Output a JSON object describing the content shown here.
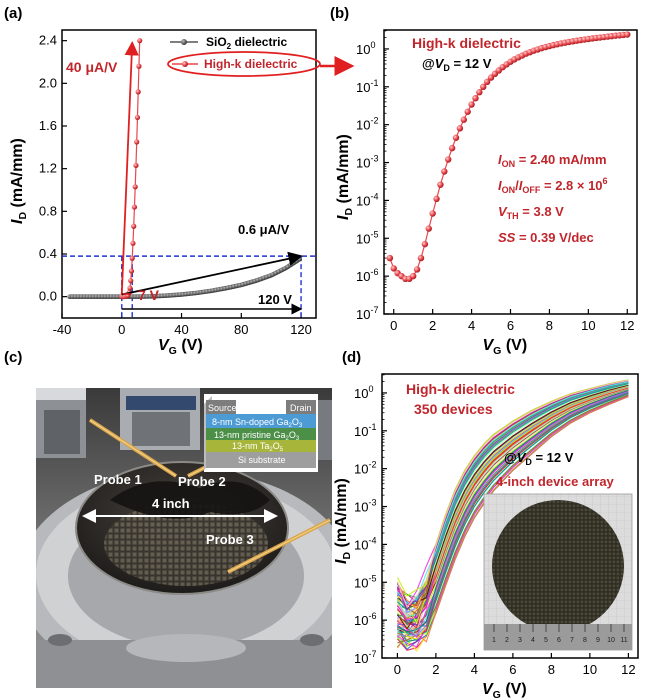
{
  "panels": {
    "a": "(a)",
    "b": "(b)",
    "c": "(c)",
    "d": "(d)"
  },
  "colors": {
    "highk": "#e8474c",
    "highk_text": "#c0262c",
    "sio2": "#555555",
    "dash": "#2233cc",
    "axis": "#000000"
  },
  "chart_data": [
    {
      "panel": "a",
      "type": "line",
      "title": "",
      "xlabel": "V",
      "xlabel_sub": "G",
      "xlabel_unit": "(V)",
      "ylabel": "I",
      "ylabel_sub": "D",
      "ylabel_unit": "(mA/mm)",
      "xlim": [
        -40,
        130
      ],
      "ylim": [
        -0.2,
        2.5
      ],
      "x_ticks": [
        -40,
        0,
        40,
        80,
        120
      ],
      "x_tick_labels": [
        "-40",
        "0",
        "40",
        "80",
        "120"
      ],
      "y_ticks": [
        0.0,
        0.4,
        0.8,
        1.2,
        1.6,
        2.0,
        2.4
      ],
      "y_tick_labels": [
        "0.0",
        "0.4",
        "0.8",
        "1.2",
        "1.6",
        "2.0",
        "2.4"
      ],
      "legend": [
        {
          "name_main": "SiO",
          "name_sub": "2",
          "name_rest": " dielectric",
          "color": "#555555"
        },
        {
          "name_main": "High-k dielectric",
          "name_sub": "",
          "name_rest": "",
          "color": "#e8474c"
        }
      ],
      "series": [
        {
          "name": "SiO2 dielectric",
          "x": [
            -35,
            -20,
            0,
            10,
            20,
            30,
            40,
            50,
            60,
            70,
            80,
            90,
            100,
            110,
            120
          ],
          "y": [
            0.0,
            0.0,
            0.0,
            0.0,
            0.003,
            0.01,
            0.02,
            0.035,
            0.055,
            0.08,
            0.11,
            0.15,
            0.2,
            0.27,
            0.36
          ]
        },
        {
          "name": "High-k dielectric",
          "x": [
            0,
            1,
            2,
            3,
            4,
            5,
            5.5,
            6,
            6.5,
            7,
            7.5,
            8,
            8.5,
            9,
            9.5,
            10,
            10.5,
            11,
            11.5,
            12
          ],
          "y": [
            0.0,
            0.0,
            0.001,
            0.003,
            0.01,
            0.04,
            0.08,
            0.15,
            0.24,
            0.36,
            0.5,
            0.66,
            0.84,
            1.03,
            1.23,
            1.45,
            1.68,
            1.92,
            2.16,
            2.4
          ]
        }
      ],
      "annotations": {
        "slope_highk": "40 μA/V",
        "slope_sio2": "0.6 μA/V",
        "vth_highk": "7 V",
        "vth_sio2": "120 V",
        "legend_highlight": "High-k dielectric"
      },
      "ref_level": 0.38
    },
    {
      "panel": "b",
      "type": "scatter",
      "title": "High-k dielectric",
      "condition_prefix": "@",
      "condition_var": "V",
      "condition_sub": "D",
      "condition_val": " = 12 V",
      "xlabel": "V",
      "xlabel_sub": "G",
      "xlabel_unit": "(V)",
      "ylabel": "I",
      "ylabel_sub": "D",
      "ylabel_unit": "(mA/mm)",
      "xlim": [
        -0.5,
        12.5
      ],
      "ylog": [
        -7,
        0.5
      ],
      "x_ticks": [
        0,
        2,
        4,
        6,
        8,
        10,
        12
      ],
      "x_tick_labels": [
        "0",
        "2",
        "4",
        "6",
        "8",
        "10",
        "12"
      ],
      "y_decades": [
        -7,
        -6,
        -5,
        -4,
        -3,
        -2,
        -1,
        0
      ],
      "y_tick_exps": [
        "-7",
        "-6",
        "-5",
        "-4",
        "-3",
        "-2",
        "-1",
        "0"
      ],
      "series": [
        {
          "name": "High-k dielectric",
          "x": [
            -0.2,
            0,
            0.2,
            0.4,
            0.6,
            0.8,
            1.0,
            1.2,
            1.4,
            1.6,
            1.8,
            2.0,
            2.2,
            2.4,
            2.6,
            2.8,
            3.0,
            3.2,
            3.4,
            3.6,
            3.8,
            4.0,
            4.2,
            4.4,
            4.6,
            4.8,
            5.0,
            5.2,
            5.4,
            5.6,
            5.8,
            6.0,
            6.2,
            6.4,
            6.6,
            6.8,
            7.0,
            7.2,
            7.4,
            7.6,
            7.8,
            8.0,
            8.2,
            8.4,
            8.6,
            8.8,
            9.0,
            9.2,
            9.4,
            9.6,
            9.8,
            10.0,
            10.2,
            10.4,
            10.6,
            10.8,
            11.0,
            11.2,
            11.4,
            11.6,
            11.8,
            12.0
          ],
          "y": [
            3e-06,
            1.6e-06,
            1.2e-06,
            1e-06,
            8.5e-07,
            8.5e-07,
            1e-06,
            1.5e-06,
            3e-06,
            7e-06,
            1.8e-05,
            4.5e-05,
            0.00011,
            0.00026,
            0.00058,
            0.0012,
            0.0024,
            0.0045,
            0.008,
            0.0135,
            0.022,
            0.034,
            0.05,
            0.072,
            0.1,
            0.135,
            0.175,
            0.22,
            0.27,
            0.33,
            0.39,
            0.46,
            0.53,
            0.6,
            0.67,
            0.75,
            0.82,
            0.9,
            0.97,
            1.05,
            1.12,
            1.19,
            1.26,
            1.33,
            1.4,
            1.46,
            1.53,
            1.59,
            1.65,
            1.71,
            1.77,
            1.83,
            1.89,
            1.95,
            2.0,
            2.06,
            2.12,
            2.18,
            2.24,
            2.29,
            2.34,
            2.4
          ]
        }
      ],
      "metrics": {
        "ion_var": "I",
        "ion_sub": "ON",
        "ion_val": " = 2.40 mA/mm",
        "ratio_var1": "I",
        "ratio_sub1": "ON",
        "ratio_slash": "/",
        "ratio_var2": "I",
        "ratio_sub2": "OFF",
        "ratio_val": " = 2.8 × 10",
        "ratio_exp": "6",
        "vth_var": "V",
        "vth_sub": "TH",
        "vth_val": " = 3.8 V",
        "ss_var": "SS",
        "ss_val": " = 0.39 V/dec"
      }
    },
    {
      "panel": "d",
      "type": "line",
      "title": "High-k dielectric",
      "subtitle": "350 devices",
      "condition_prefix": "@",
      "condition_var": "V",
      "condition_sub": "D",
      "condition_val": " = 12 V",
      "inset_caption": "4-inch device array",
      "xlabel": "V",
      "xlabel_sub": "G",
      "xlabel_unit": "(V)",
      "ylabel": "I",
      "ylabel_sub": "D",
      "ylabel_unit": "(mA/mm)",
      "xlim": [
        -0.8,
        12.5
      ],
      "ylog": [
        -7,
        0.5
      ],
      "x_ticks": [
        0,
        2,
        4,
        6,
        8,
        10,
        12
      ],
      "x_tick_labels": [
        "0",
        "2",
        "4",
        "6",
        "8",
        "10",
        "12"
      ],
      "y_decades": [
        -7,
        -6,
        -5,
        -4,
        -3,
        -2,
        -1,
        0
      ],
      "y_tick_exps": [
        "-7",
        "-6",
        "-5",
        "-4",
        "-3",
        "-2",
        "-1",
        "0"
      ],
      "device_count": 350,
      "envelope": {
        "x": [
          0,
          0.5,
          1,
          1.5,
          2,
          2.5,
          3,
          3.5,
          4,
          4.5,
          5,
          6,
          7,
          8,
          9,
          10,
          11,
          12
        ],
        "y_min": [
          3e-07,
          2.5e-07,
          2.5e-07,
          4e-07,
          1.5e-06,
          8e-06,
          4e-05,
          0.00016,
          0.0005,
          0.0012,
          0.0026,
          0.009,
          0.025,
          0.07,
          0.16,
          0.3,
          0.5,
          0.8
        ],
        "y_max": [
          1e-05,
          4e-06,
          4e-06,
          1.5e-05,
          0.0001,
          0.0006,
          0.0028,
          0.009,
          0.022,
          0.045,
          0.08,
          0.18,
          0.35,
          0.6,
          0.95,
          1.3,
          1.75,
          2.2
        ]
      },
      "inset_scale_ticks": [
        "1",
        "2",
        "3",
        "4",
        "5",
        "6",
        "7",
        "8",
        "9",
        "10",
        "11"
      ]
    }
  ],
  "photo": {
    "labels": {
      "probe1": "Probe 1",
      "probe2": "Probe 2",
      "probe3": "Probe 3",
      "wafer_size": "4 inch"
    },
    "stack": {
      "source": "Source",
      "drain": "Drain",
      "layer1_a": "8-nm Sn-doped Ga",
      "layer1_b": "2",
      "layer1_c": "O",
      "layer1_d": "3",
      "layer2_a": "13-nm pristine Ga",
      "layer2_b": "2",
      "layer2_c": "O",
      "layer2_d": "3",
      "layer3_a": "13-nm Ta",
      "layer3_b": "2",
      "layer3_c": "O",
      "layer3_d": "5",
      "layer4": "Si substrate"
    }
  }
}
